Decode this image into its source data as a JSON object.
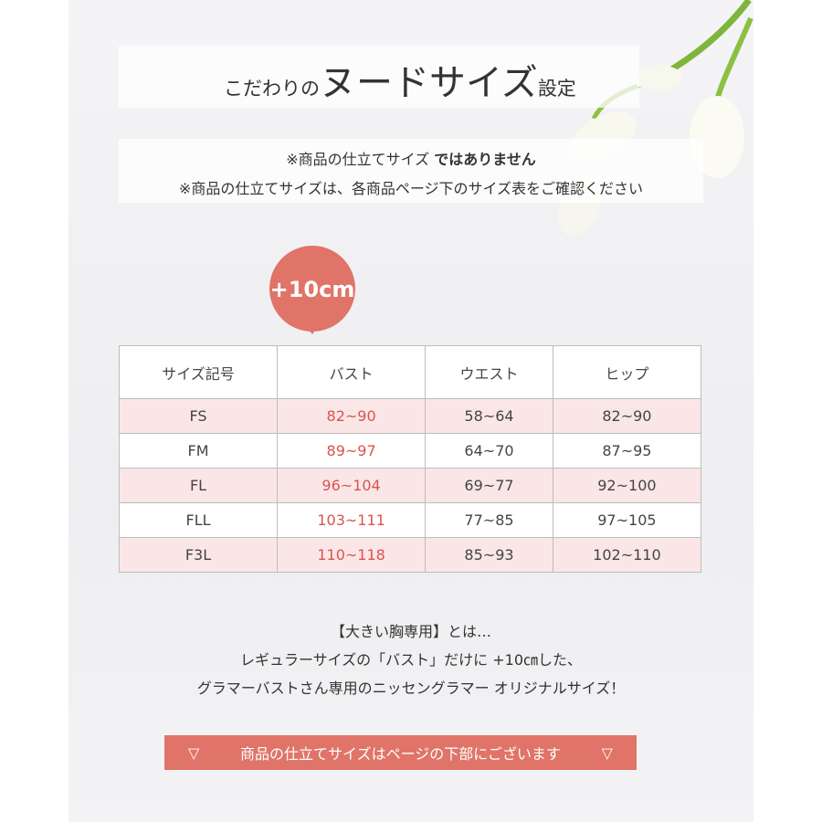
{
  "header": {
    "title_pre": "こだわりの",
    "title_main": "ヌードサイズ",
    "title_post": "設定"
  },
  "notes": {
    "line1_plain": "※商品の仕立てサイズ",
    "line1_bold": "ではありません",
    "line2": "※商品の仕立てサイズは、各商品ページ下のサイズ表をご確認ください"
  },
  "badge": "+10cm",
  "table": {
    "header": [
      "サイズ記号",
      "バスト",
      "ウエスト",
      "ヒップ"
    ],
    "rows": [
      [
        "FS",
        "82~90",
        "58~64",
        "82~90"
      ],
      [
        "FM",
        "89~97",
        "64~70",
        "87~95"
      ],
      [
        "FL",
        "96~104",
        "69~77",
        "92~100"
      ],
      [
        "FLL",
        "103~111",
        "77~85",
        "97~105"
      ],
      [
        "F3L",
        "110~118",
        "85~93",
        "102~110"
      ]
    ]
  },
  "description": [
    "【大きい胸専用】とは…",
    "レギュラーサイズの「バスト」だけに +10㎝した、",
    "グラマーバストさん専用のニッセングラマー オリジナルサイズ！"
  ],
  "button": {
    "left": "▽",
    "label": "商品の仕立てサイズはページの下部にございます",
    "right": "▽"
  }
}
